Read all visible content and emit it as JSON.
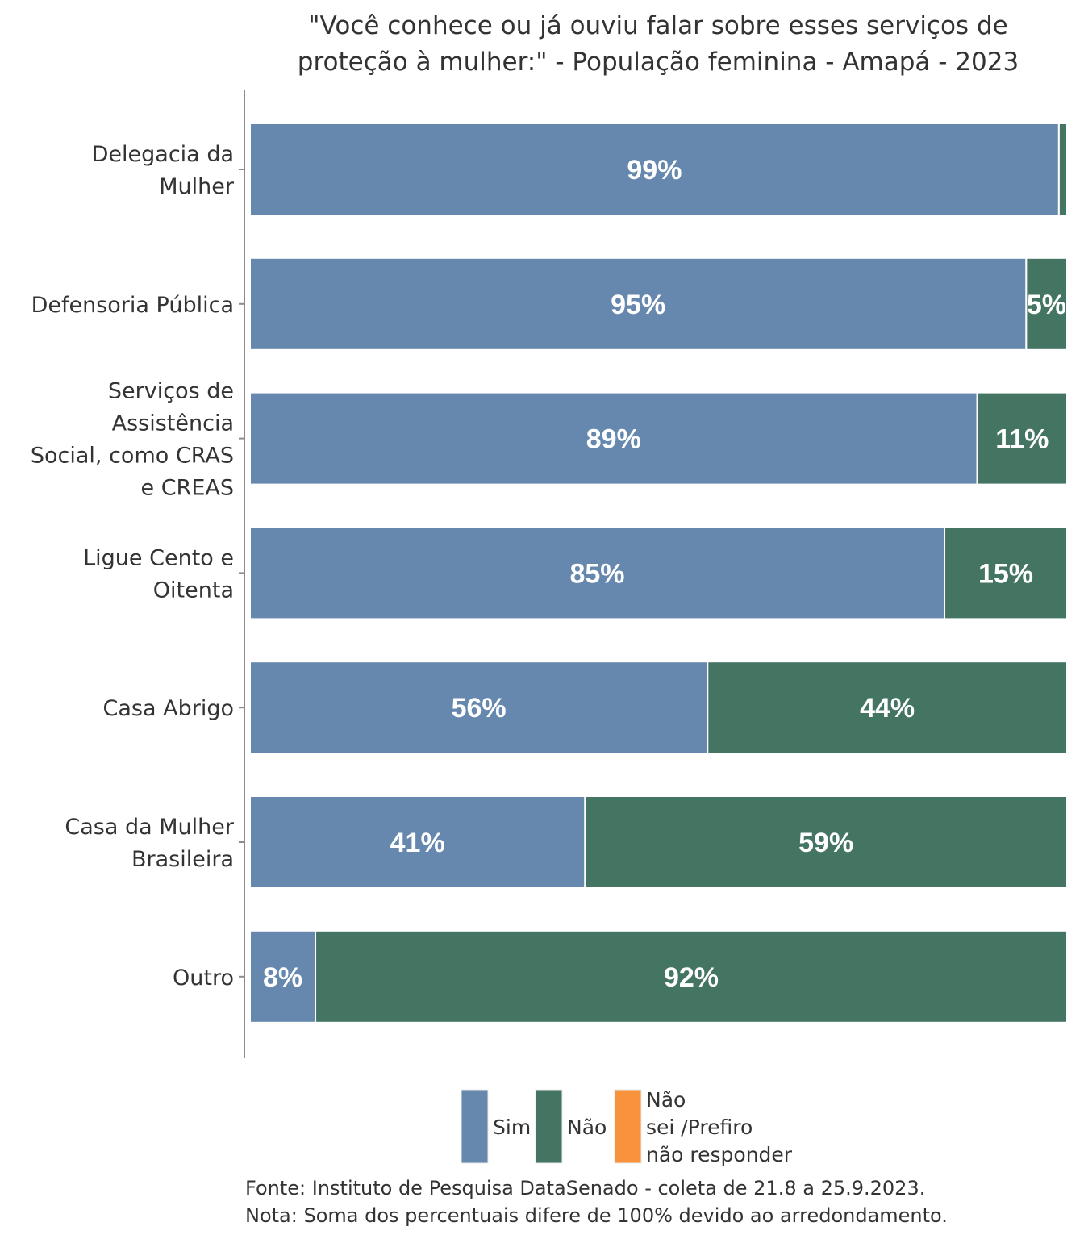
{
  "chart_data": {
    "type": "bar",
    "orientation": "horizontal",
    "stacked": true,
    "title": [
      "\"Você conhece ou já ouviu falar sobre esses serviços de",
      "proteção à mulher:\" - População feminina - Amapá - 2023"
    ],
    "categories": [
      [
        "Delegacia da",
        "Mulher"
      ],
      [
        "Defensoria Pública"
      ],
      [
        "Serviços de",
        "Assistência",
        "Social, como CRAS",
        "e CREAS"
      ],
      [
        "Ligue Cento e",
        "Oitenta"
      ],
      [
        "Casa Abrigo"
      ],
      [
        "Casa da Mulher",
        "Brasileira"
      ],
      [
        "Outro"
      ]
    ],
    "series": [
      {
        "name": "Sim",
        "color": "#6688AE",
        "values": [
          99,
          95,
          89,
          85,
          56,
          41,
          8
        ]
      },
      {
        "name": "Não",
        "color": "#447563",
        "values": [
          1,
          5,
          11,
          15,
          44,
          59,
          92
        ]
      },
      {
        "name": "Não sei /Prefiro não responder",
        "color": "#F8923C",
        "values": [
          0,
          0,
          0,
          0,
          0,
          0,
          0
        ]
      }
    ],
    "data_labels": [
      [
        "99%",
        "95%",
        "89%",
        "85%",
        "56%",
        "41%",
        "8%"
      ],
      [
        "",
        "5%",
        "11%",
        "15%",
        "44%",
        "59%",
        "92%"
      ],
      [
        "",
        "",
        "",
        "",
        "",
        "",
        ""
      ]
    ],
    "xlim": [
      0,
      100
    ],
    "xlabel": "",
    "ylabel": "",
    "grid": false,
    "legend": {
      "position": "bottom",
      "entries": [
        {
          "label_lines": [
            "Sim"
          ],
          "color": "#6688AE"
        },
        {
          "label_lines": [
            "Não"
          ],
          "color": "#447563"
        },
        {
          "label_lines": [
            "Não",
            "sei /Prefiro",
            "não responder"
          ],
          "color": "#F8923C"
        }
      ]
    },
    "footnotes": [
      "Fonte: Instituto de Pesquisa DataSenado - coleta de 21.8 a 25.9.2023.",
      "Nota: Soma dos percentuais difere de 100% devido ao arredondamento."
    ]
  }
}
